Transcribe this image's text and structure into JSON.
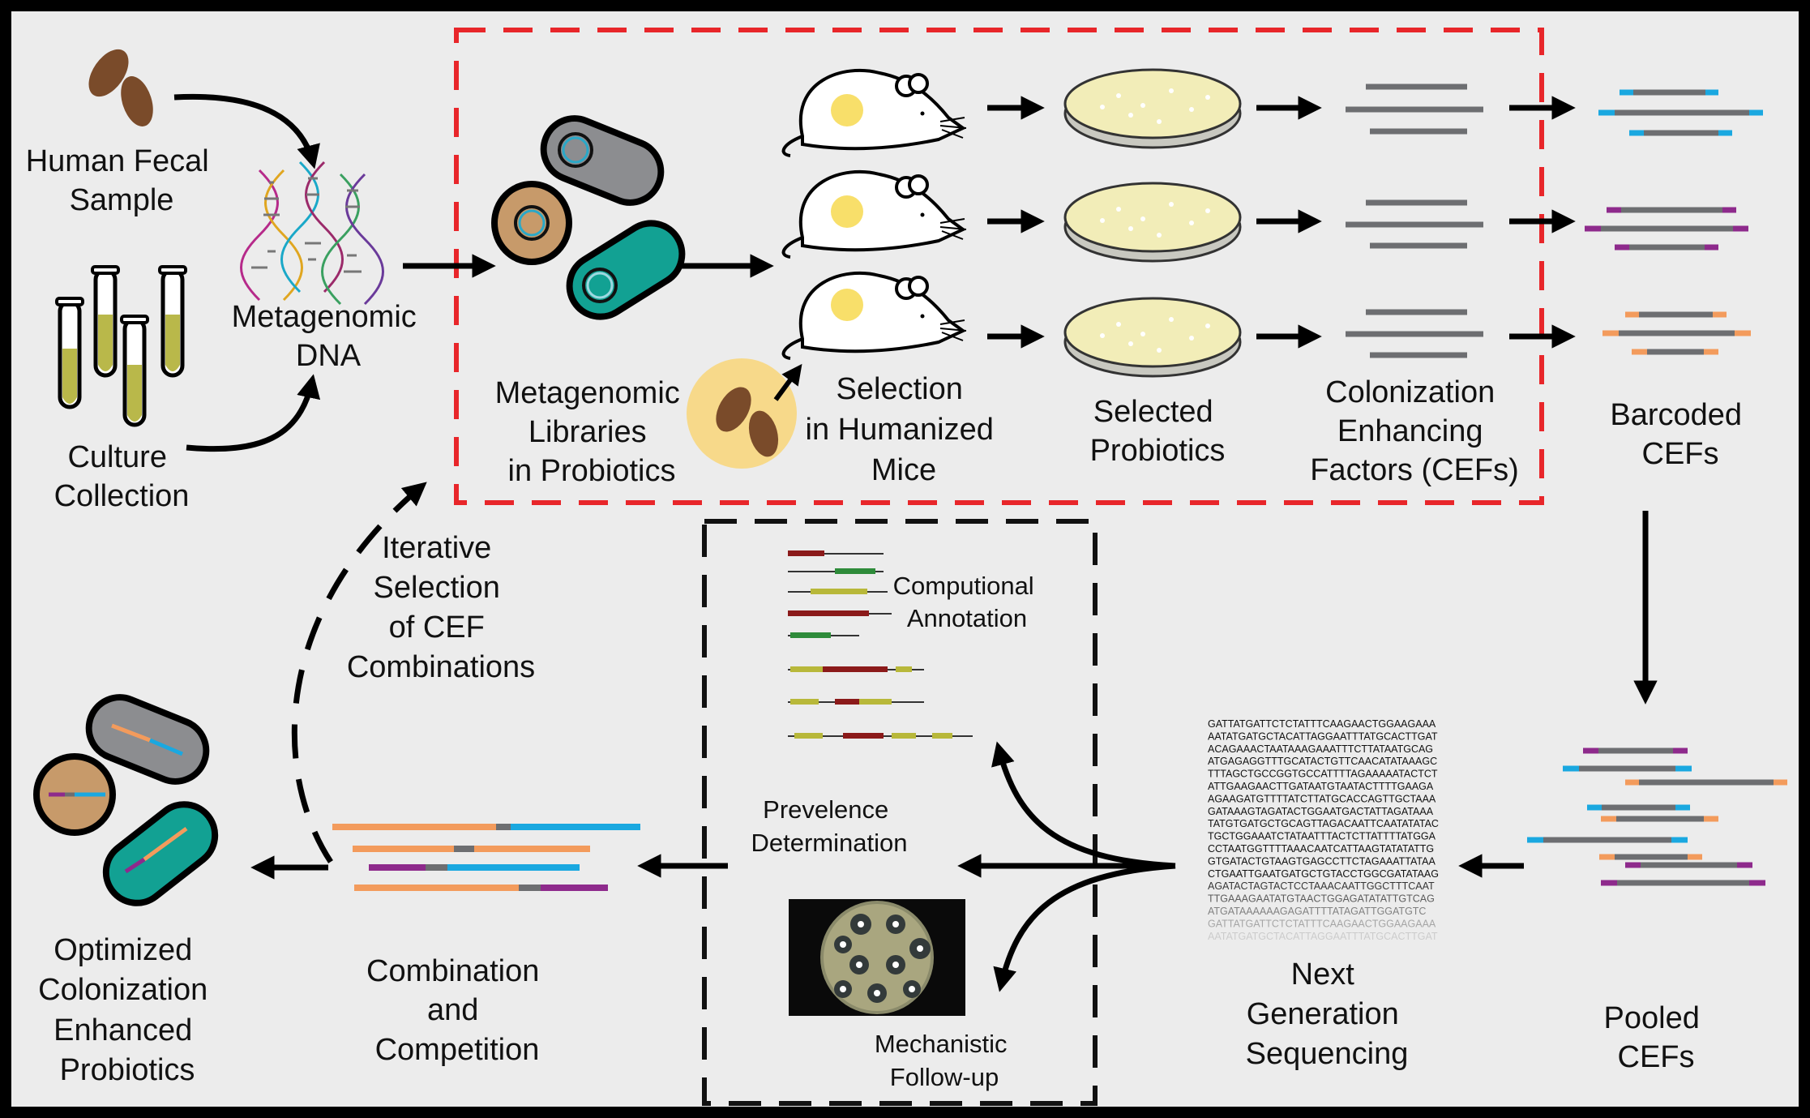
{
  "colors": {
    "background": "#ececec",
    "border": "#000000",
    "red_dashed_box": "#e8262a",
    "bacterium_gray": "#8c8d90",
    "bacterium_teal": "#12a193",
    "bacterium_tan": "#c79a6a",
    "feces_brown": "#7a4b2a",
    "culture_yellow": "#b9b84a",
    "plate_yellow": "#f2edb8",
    "barcode_blue": "#1aa8e0",
    "barcode_purple": "#8e2a8c",
    "barcode_orange": "#f39b5c",
    "line_gray": "#6d6e71"
  },
  "labels": {
    "human_fecal_sample": [
      "Human Fecal",
      "Sample"
    ],
    "culture_collection": [
      "Culture",
      "Collection"
    ],
    "metagenomic_dna": [
      "Metagenomic",
      "DNA"
    ],
    "metagenomic_libraries": [
      "Metagenomic",
      "Libraries",
      "in Probiotics"
    ],
    "selection_humanized_mice": [
      "Selection",
      "in Humanized",
      "Mice"
    ],
    "selected_probiotics": [
      "Selected",
      "Probiotics"
    ],
    "cefs": [
      "Colonization",
      "Enhancing",
      "Factors (CEFs)"
    ],
    "barcoded_cefs": [
      "Barcoded",
      "CEFs"
    ],
    "pooled_cefs": [
      "Pooled",
      "CEFs"
    ],
    "next_gen_sequencing": [
      "Next",
      "Generation",
      "Sequencing"
    ],
    "computational_annotation": [
      "Computional",
      "Annotation"
    ],
    "prevalence_determination": [
      "Prevelence",
      "Determination"
    ],
    "mechanistic_followup": [
      "Mechanistic",
      "Follow-up"
    ],
    "combination_competition": [
      "Combination",
      "and",
      "Competition"
    ],
    "iterative_selection": [
      "Iterative",
      "Selection",
      "of CEF",
      "Combinations"
    ],
    "optimized_probiotics": [
      "Optimized",
      "Colonization",
      "Enhanced",
      "Probiotics"
    ]
  },
  "sequence_text": [
    "GATTATGATTCTCTATTTCAAGAACTGGAAGAAA",
    "AATATGATGCTACATTAGGAATTTATGCACTTGAT",
    "ACAGAAACTAATAAAGAAATTTCTTATAATGCAG",
    "ATGAGAGGTTTGCATACTGTTCAACATATAAAGC",
    "TTTAGCTGCCGGTGCCATTTTAGAAAAATACTCT",
    "ATTGAAGAACTTGATAATGTAATACTTTTGAAGA",
    "AGAAGATGTTTTATCTTATGCACCAGTTGCTAAA",
    "GATAAAGTAGATACTGGAATGACTATTAGATAAA",
    "TATGTGATGCTGCAGTTAGACAATTCAATATATAC",
    "TGCTGGAAATCTATAATTTACTCTTATTTTATGGA",
    "CCTAATGGTTTTAAACAATCATTAAGTATATATTG",
    "GTGATACTGTAAGTGAGCCTTCTAGAAATTATAA",
    "CTGAATTGAATGATGCTGTACCTGGCGATATAAG",
    "AGATACTAGTACTCCTAAACAATTGGCTTTCAAT",
    "TTGAAAGAATATGTAACTGGAGATATATTGTCAG",
    "ATGATAAAAAAGAGATTTTATAGATTGGATGTC",
    "GATTATGATTCTCTATTTCAAGAACTGGAAGAAA",
    "AATATGATGCTACATTAGGAATTTATGCACTTGAT"
  ]
}
